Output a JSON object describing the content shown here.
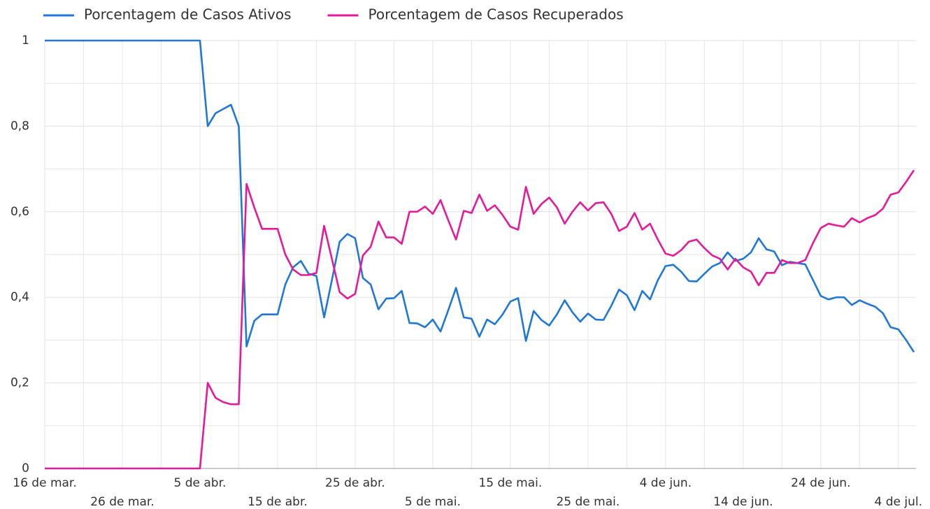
{
  "chart_data": {
    "type": "line",
    "categories": [
      "16 de mar.",
      null,
      null,
      null,
      null,
      null,
      null,
      null,
      null,
      null,
      "26 de mar.",
      null,
      null,
      null,
      null,
      null,
      null,
      null,
      null,
      null,
      "5 de abr.",
      null,
      null,
      null,
      null,
      null,
      null,
      null,
      null,
      null,
      "15 de abr.",
      null,
      null,
      null,
      null,
      null,
      null,
      null,
      null,
      null,
      "25 de abr.",
      null,
      null,
      null,
      null,
      null,
      null,
      null,
      null,
      null,
      "5 de mai.",
      null,
      null,
      null,
      null,
      null,
      null,
      null,
      null,
      null,
      "15 de mai.",
      null,
      null,
      null,
      null,
      null,
      null,
      null,
      null,
      null,
      "25 de mai.",
      null,
      null,
      null,
      null,
      null,
      null,
      null,
      null,
      null,
      "4 de jun.",
      null,
      null,
      null,
      null,
      null,
      null,
      null,
      null,
      null,
      "14 de jun.",
      null,
      null,
      null,
      null,
      null,
      null,
      null,
      null,
      null,
      "24 de jun.",
      null,
      null,
      null,
      null,
      null,
      null,
      null,
      null,
      null,
      "4 de jul.",
      null,
      null
    ],
    "series": [
      {
        "name": "Porcentagem de Casos Ativos",
        "color": "#1f78d8",
        "values": [
          1,
          1,
          1,
          1,
          1,
          1,
          1,
          1,
          1,
          1,
          1,
          1,
          1,
          1,
          1,
          1,
          1,
          1,
          1,
          1,
          1,
          0.8,
          0.83,
          0.84,
          0.85,
          0.8,
          0.285,
          0.345,
          0.36,
          0.36,
          0.36,
          0.43,
          0.47,
          0.485,
          0.455,
          0.45,
          0.353,
          0.44,
          0.53,
          0.548,
          0.538,
          0.445,
          0.43,
          0.372,
          0.397,
          0.398,
          0.415,
          0.34,
          0.339,
          0.33,
          0.348,
          0.32,
          0.37,
          0.422,
          0.353,
          0.35,
          0.308,
          0.348,
          0.337,
          0.36,
          0.39,
          0.398,
          0.298,
          0.368,
          0.347,
          0.334,
          0.36,
          0.393,
          0.365,
          0.343,
          0.362,
          0.348,
          0.347,
          0.38,
          0.418,
          0.405,
          0.37,
          0.415,
          0.395,
          0.44,
          0.473,
          0.476,
          0.46,
          0.438,
          0.437,
          0.455,
          0.472,
          0.48,
          0.505,
          0.485,
          0.49,
          0.505,
          0.538,
          0.512,
          0.507,
          0.475,
          0.483,
          0.48,
          0.477,
          0.44,
          0.403,
          0.395,
          0.4,
          0.4,
          0.382,
          0.393,
          0.385,
          0.378,
          0.363,
          0.33,
          0.325,
          0.3,
          0.272
        ]
      },
      {
        "name": "Porcentagem de Casos Recuperados",
        "color": "#e6199a",
        "values": [
          0,
          0,
          0,
          0,
          0,
          0,
          0,
          0,
          0,
          0,
          0,
          0,
          0,
          0,
          0,
          0,
          0,
          0,
          0,
          0,
          0,
          0.2,
          0.165,
          0.155,
          0.15,
          0.15,
          0.665,
          0.61,
          0.56,
          0.56,
          0.56,
          0.5,
          0.465,
          0.452,
          0.452,
          0.457,
          0.567,
          0.49,
          0.412,
          0.397,
          0.408,
          0.498,
          0.518,
          0.577,
          0.54,
          0.54,
          0.525,
          0.6,
          0.6,
          0.612,
          0.595,
          0.627,
          0.58,
          0.535,
          0.602,
          0.597,
          0.64,
          0.602,
          0.615,
          0.592,
          0.565,
          0.558,
          0.658,
          0.595,
          0.618,
          0.633,
          0.61,
          0.572,
          0.6,
          0.622,
          0.603,
          0.62,
          0.622,
          0.595,
          0.555,
          0.565,
          0.597,
          0.558,
          0.572,
          0.535,
          0.502,
          0.497,
          0.51,
          0.53,
          0.535,
          0.515,
          0.498,
          0.49,
          0.465,
          0.49,
          0.47,
          0.46,
          0.428,
          0.457,
          0.457,
          0.487,
          0.48,
          0.48,
          0.487,
          0.527,
          0.562,
          0.572,
          0.568,
          0.565,
          0.585,
          0.575,
          0.585,
          0.592,
          0.607,
          0.64,
          0.645,
          0.67,
          0.697
        ]
      }
    ],
    "ylim": [
      0,
      1
    ],
    "yticks": [
      0,
      {
        "value": 0.2,
        "label": "0,2"
      },
      {
        "value": 0.4,
        "label": "0,4"
      },
      {
        "value": 0.6,
        "label": "0,6"
      },
      {
        "value": 0.8,
        "label": "0,8"
      },
      1
    ],
    "grid": true,
    "legend": "top"
  }
}
